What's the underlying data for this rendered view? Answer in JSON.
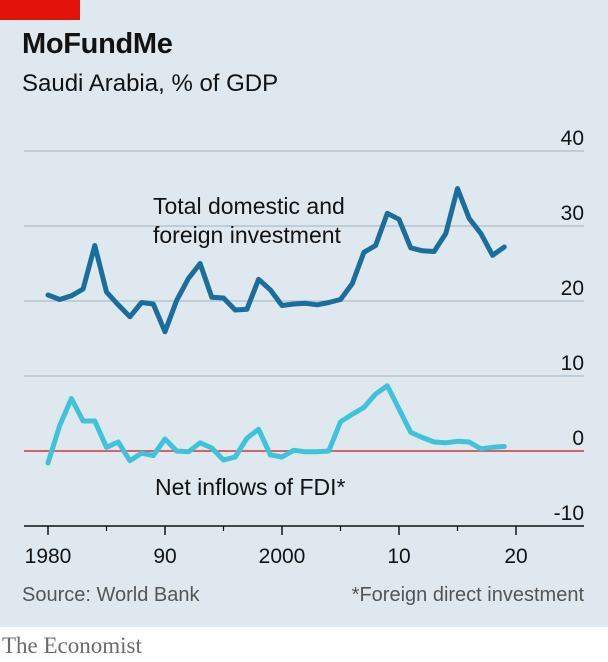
{
  "header": {
    "title": "MoFundMe",
    "subtitle": "Saudi Arabia, % of GDP"
  },
  "footer": {
    "source": "Source: World Bank",
    "footnote": "*Foreign direct investment",
    "brand": "The Economist"
  },
  "colors": {
    "investment_line": "#1a6e9c",
    "fdi_line": "#3ec3d9",
    "zero_line": "#d2363a",
    "grid": "#b4c4cd",
    "axis": "#121212",
    "background": "#dfe8ee",
    "brand_red": "#e3120b"
  },
  "chart_data": {
    "type": "line",
    "title": "MoFundMe",
    "subtitle": "Saudi Arabia, % of GDP",
    "xlabel": "",
    "ylabel": "",
    "xlim": [
      1979,
      2024
    ],
    "ylim": [
      -10,
      40
    ],
    "y_ticks": [
      40,
      30,
      20,
      10,
      0,
      -10
    ],
    "y_tick_labels": [
      "40",
      "30",
      "20",
      "10",
      "0",
      "-10"
    ],
    "x_ticks": [
      1980,
      1990,
      2000,
      2010,
      2020
    ],
    "x_tick_labels": [
      "1980",
      "90",
      "2000",
      "10",
      "20"
    ],
    "grid": true,
    "legend": "inline labels",
    "x": [
      1980,
      1981,
      1982,
      1983,
      1984,
      1985,
      1986,
      1987,
      1988,
      1989,
      1990,
      1991,
      1992,
      1993,
      1994,
      1995,
      1996,
      1997,
      1998,
      1999,
      2000,
      2001,
      2002,
      2003,
      2004,
      2005,
      2006,
      2007,
      2008,
      2009,
      2010,
      2011,
      2012,
      2013,
      2014,
      2015,
      2016,
      2017,
      2018,
      2019
    ],
    "series": [
      {
        "name": "Total domestic and foreign investment",
        "label_lines": [
          "Total domestic and",
          "foreign investment"
        ],
        "values": [
          20.8,
          20.2,
          20.7,
          21.6,
          27.4,
          21.2,
          19.5,
          17.9,
          19.8,
          19.6,
          15.9,
          20.1,
          23.0,
          25.0,
          20.5,
          20.4,
          18.8,
          18.9,
          22.9,
          21.5,
          19.4,
          19.6,
          19.7,
          19.5,
          19.8,
          20.2,
          22.3,
          26.5,
          27.4,
          31.7,
          30.9,
          27.1,
          26.7,
          26.6,
          29.0,
          35.0,
          31.0,
          29.0,
          26.1,
          27.2
        ]
      },
      {
        "name": "Net inflows of FDI*",
        "label_lines": [
          "Net inflows of FDI*"
        ],
        "values": [
          -1.6,
          3.4,
          7.0,
          4.0,
          4.0,
          0.5,
          1.2,
          -1.3,
          -0.3,
          -0.6,
          1.6,
          0.0,
          -0.1,
          1.1,
          0.4,
          -1.2,
          -0.8,
          1.7,
          2.9,
          -0.5,
          -0.8,
          0.1,
          -0.1,
          -0.1,
          0.0,
          3.9,
          4.9,
          5.8,
          7.6,
          8.7,
          5.6,
          2.5,
          1.8,
          1.2,
          1.1,
          1.3,
          1.2,
          0.3,
          0.5,
          0.6
        ]
      }
    ]
  }
}
